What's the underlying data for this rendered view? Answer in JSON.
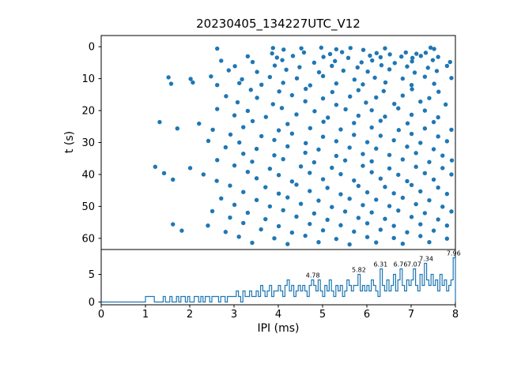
{
  "figure": {
    "title": "20230405_134227UTC_V12",
    "background": "#ffffff",
    "accent_color": "#1f77b4",
    "axis_color": "#000000"
  },
  "chart_data": [
    {
      "type": "scatter",
      "title": "20230405_134227UTC_V12",
      "xlabel": "",
      "ylabel": "t (s)",
      "xlim": [
        0,
        8
      ],
      "ylim": [
        -3.5,
        63.5
      ],
      "y_inverted": true,
      "xticks": [
        0,
        1,
        2,
        3,
        4,
        5,
        6,
        7,
        8
      ],
      "yticks": [
        0,
        10,
        20,
        30,
        40,
        50,
        60
      ],
      "marker_color": "#1f77b4",
      "points": [
        [
          2.62,
          0.6
        ],
        [
          3.88,
          0.4
        ],
        [
          4.12,
          0.9
        ],
        [
          4.52,
          0.5
        ],
        [
          4.97,
          0.3
        ],
        [
          5.31,
          0.8
        ],
        [
          5.63,
          0.4
        ],
        [
          5.92,
          1.0
        ],
        [
          6.41,
          0.5
        ],
        [
          7.44,
          0.3
        ],
        [
          7.52,
          0.7
        ],
        [
          3.86,
          2.1
        ],
        [
          4.58,
          1.8
        ],
        [
          5.17,
          2.3
        ],
        [
          5.44,
          1.7
        ],
        [
          6.22,
          2.0
        ],
        [
          6.52,
          2.4
        ],
        [
          6.88,
          1.8
        ],
        [
          7.12,
          2.2
        ],
        [
          7.33,
          1.9
        ],
        [
          3.31,
          3.0
        ],
        [
          3.97,
          3.4
        ],
        [
          4.33,
          2.9
        ],
        [
          5.02,
          3.2
        ],
        [
          5.58,
          3.5
        ],
        [
          6.07,
          2.8
        ],
        [
          6.31,
          3.3
        ],
        [
          6.78,
          3.1
        ],
        [
          7.03,
          3.5
        ],
        [
          7.22,
          2.9
        ],
        [
          7.61,
          3.2
        ],
        [
          2.71,
          4.4
        ],
        [
          3.42,
          4.8
        ],
        [
          4.09,
          4.2
        ],
        [
          4.81,
          5.0
        ],
        [
          5.28,
          4.5
        ],
        [
          5.88,
          4.9
        ],
        [
          6.12,
          4.3
        ],
        [
          6.63,
          5.1
        ],
        [
          7.02,
          4.6
        ],
        [
          7.49,
          4.2
        ],
        [
          7.88,
          4.8
        ],
        [
          3.02,
          6.1
        ],
        [
          3.92,
          5.9
        ],
        [
          4.48,
          6.4
        ],
        [
          5.21,
          6.0
        ],
        [
          5.79,
          6.5
        ],
        [
          6.33,
          5.8
        ],
        [
          6.91,
          6.2
        ],
        [
          7.38,
          6.6
        ],
        [
          7.81,
          6.0
        ],
        [
          2.88,
          7.4
        ],
        [
          3.52,
          7.9
        ],
        [
          4.18,
          7.2
        ],
        [
          4.92,
          8.0
        ],
        [
          5.47,
          7.5
        ],
        [
          6.02,
          7.8
        ],
        [
          6.51,
          7.1
        ],
        [
          7.08,
          8.1
        ],
        [
          7.58,
          7.6
        ],
        [
          1.52,
          9.6
        ],
        [
          2.02,
          10.1
        ],
        [
          2.48,
          9.3
        ],
        [
          3.18,
          10.2
        ],
        [
          3.81,
          9.5
        ],
        [
          4.42,
          9.9
        ],
        [
          5.01,
          9.2
        ],
        [
          5.72,
          10.3
        ],
        [
          6.18,
          9.7
        ],
        [
          6.81,
          10.0
        ],
        [
          7.31,
          9.4
        ],
        [
          7.91,
          9.8
        ],
        [
          1.58,
          11.6
        ],
        [
          2.07,
          11.2
        ],
        [
          2.62,
          12.0
        ],
        [
          3.12,
          11.4
        ],
        [
          3.62,
          11.9
        ],
        [
          4.11,
          11.3
        ],
        [
          4.72,
          12.1
        ],
        [
          5.31,
          11.5
        ],
        [
          5.91,
          11.8
        ],
        [
          6.42,
          11.2
        ],
        [
          7.01,
          12.0
        ],
        [
          7.52,
          11.6
        ],
        [
          3.38,
          13.5
        ],
        [
          4.02,
          14.0
        ],
        [
          4.62,
          13.2
        ],
        [
          5.22,
          14.2
        ],
        [
          5.81,
          13.6
        ],
        [
          6.38,
          13.9
        ],
        [
          7.02,
          13.3
        ],
        [
          7.62,
          14.1
        ],
        [
          2.82,
          15.5
        ],
        [
          3.52,
          16.0
        ],
        [
          4.31,
          15.2
        ],
        [
          5.01,
          16.2
        ],
        [
          5.62,
          15.6
        ],
        [
          6.21,
          15.9
        ],
        [
          6.81,
          15.3
        ],
        [
          7.41,
          16.1
        ],
        [
          3.08,
          17.4
        ],
        [
          3.88,
          18.0
        ],
        [
          4.61,
          17.1
        ],
        [
          5.31,
          18.2
        ],
        [
          5.98,
          17.5
        ],
        [
          6.62,
          17.9
        ],
        [
          7.21,
          17.2
        ],
        [
          7.78,
          18.1
        ],
        [
          2.62,
          19.5
        ],
        [
          3.31,
          20.1
        ],
        [
          4.08,
          19.2
        ],
        [
          4.82,
          20.2
        ],
        [
          5.52,
          19.6
        ],
        [
          6.11,
          19.9
        ],
        [
          6.71,
          19.3
        ],
        [
          7.31,
          20.0
        ],
        [
          3.01,
          21.5
        ],
        [
          3.72,
          22.0
        ],
        [
          4.41,
          21.2
        ],
        [
          5.12,
          22.2
        ],
        [
          5.81,
          21.6
        ],
        [
          6.41,
          21.9
        ],
        [
          7.01,
          21.3
        ],
        [
          7.61,
          22.1
        ],
        [
          1.32,
          23.6
        ],
        [
          2.21,
          24.1
        ],
        [
          3.42,
          23.3
        ],
        [
          4.21,
          24.2
        ],
        [
          5.02,
          23.5
        ],
        [
          5.71,
          23.9
        ],
        [
          6.31,
          23.2
        ],
        [
          6.92,
          24.0
        ],
        [
          7.51,
          23.6
        ],
        [
          1.72,
          25.6
        ],
        [
          2.52,
          26.0
        ],
        [
          3.21,
          25.2
        ],
        [
          4.01,
          26.2
        ],
        [
          4.72,
          25.5
        ],
        [
          5.41,
          25.9
        ],
        [
          6.11,
          25.3
        ],
        [
          6.72,
          26.1
        ],
        [
          7.31,
          25.6
        ],
        [
          7.91,
          26.0
        ],
        [
          2.92,
          27.5
        ],
        [
          3.62,
          28.0
        ],
        [
          4.31,
          27.2
        ],
        [
          5.01,
          28.2
        ],
        [
          5.71,
          27.6
        ],
        [
          6.31,
          27.9
        ],
        [
          7.01,
          27.3
        ],
        [
          7.61,
          28.1
        ],
        [
          2.42,
          29.5
        ],
        [
          3.12,
          30.0
        ],
        [
          3.91,
          29.2
        ],
        [
          4.62,
          30.2
        ],
        [
          5.31,
          29.6
        ],
        [
          6.01,
          29.9
        ],
        [
          6.61,
          29.3
        ],
        [
          7.21,
          30.1
        ],
        [
          7.81,
          29.6
        ],
        [
          2.81,
          31.5
        ],
        [
          3.51,
          32.0
        ],
        [
          4.21,
          31.2
        ],
        [
          4.91,
          32.2
        ],
        [
          5.61,
          31.6
        ],
        [
          6.21,
          31.9
        ],
        [
          6.91,
          31.3
        ],
        [
          7.51,
          32.1
        ],
        [
          3.21,
          33.5
        ],
        [
          3.91,
          34.0
        ],
        [
          4.61,
          33.2
        ],
        [
          5.31,
          34.2
        ],
        [
          5.91,
          33.6
        ],
        [
          6.51,
          33.9
        ],
        [
          7.11,
          33.3
        ],
        [
          7.71,
          34.1
        ],
        [
          2.62,
          35.5
        ],
        [
          3.41,
          36.0
        ],
        [
          4.11,
          35.2
        ],
        [
          4.81,
          36.2
        ],
        [
          5.51,
          35.6
        ],
        [
          6.11,
          35.9
        ],
        [
          6.81,
          35.3
        ],
        [
          7.41,
          36.1
        ],
        [
          7.92,
          35.6
        ],
        [
          1.22,
          37.6
        ],
        [
          2.01,
          38.0
        ],
        [
          3.01,
          37.2
        ],
        [
          3.81,
          38.2
        ],
        [
          4.51,
          37.5
        ],
        [
          5.21,
          37.9
        ],
        [
          5.91,
          37.3
        ],
        [
          6.51,
          38.1
        ],
        [
          7.11,
          37.6
        ],
        [
          7.71,
          38.0
        ],
        [
          1.42,
          39.6
        ],
        [
          2.31,
          40.0
        ],
        [
          3.31,
          39.2
        ],
        [
          4.01,
          40.2
        ],
        [
          4.71,
          39.5
        ],
        [
          5.41,
          39.9
        ],
        [
          6.11,
          39.3
        ],
        [
          6.71,
          40.1
        ],
        [
          7.31,
          39.6
        ],
        [
          7.91,
          40.0
        ],
        [
          1.62,
          41.6
        ],
        [
          2.61,
          42.0
        ],
        [
          3.51,
          41.2
        ],
        [
          4.31,
          42.2
        ],
        [
          5.01,
          41.5
        ],
        [
          5.71,
          41.9
        ],
        [
          6.31,
          41.3
        ],
        [
          6.91,
          42.1
        ],
        [
          7.51,
          41.6
        ],
        [
          2.91,
          43.5
        ],
        [
          3.71,
          44.0
        ],
        [
          4.41,
          43.2
        ],
        [
          5.11,
          44.2
        ],
        [
          5.81,
          43.6
        ],
        [
          6.41,
          43.9
        ],
        [
          7.01,
          43.3
        ],
        [
          7.61,
          44.1
        ],
        [
          3.21,
          45.5
        ],
        [
          4.01,
          46.0
        ],
        [
          4.71,
          45.2
        ],
        [
          5.41,
          46.2
        ],
        [
          6.01,
          45.6
        ],
        [
          6.61,
          45.9
        ],
        [
          7.21,
          45.3
        ],
        [
          7.81,
          46.1
        ],
        [
          2.71,
          47.5
        ],
        [
          3.51,
          48.0
        ],
        [
          4.21,
          47.2
        ],
        [
          4.91,
          48.2
        ],
        [
          5.61,
          47.6
        ],
        [
          6.21,
          47.9
        ],
        [
          6.81,
          47.3
        ],
        [
          7.41,
          48.1
        ],
        [
          3.01,
          49.5
        ],
        [
          3.81,
          50.0
        ],
        [
          4.51,
          49.2
        ],
        [
          5.21,
          50.2
        ],
        [
          5.91,
          49.6
        ],
        [
          6.51,
          49.9
        ],
        [
          7.11,
          49.3
        ],
        [
          7.71,
          50.1
        ],
        [
          2.51,
          51.5
        ],
        [
          3.31,
          52.0
        ],
        [
          4.11,
          51.2
        ],
        [
          4.81,
          52.2
        ],
        [
          5.51,
          51.6
        ],
        [
          6.11,
          51.9
        ],
        [
          6.71,
          51.3
        ],
        [
          7.31,
          52.1
        ],
        [
          7.91,
          51.6
        ],
        [
          2.91,
          53.5
        ],
        [
          3.71,
          54.0
        ],
        [
          4.41,
          53.2
        ],
        [
          5.11,
          54.2
        ],
        [
          5.81,
          53.6
        ],
        [
          6.41,
          53.9
        ],
        [
          7.01,
          53.3
        ],
        [
          7.61,
          54.1
        ],
        [
          1.62,
          55.6
        ],
        [
          2.41,
          56.0
        ],
        [
          3.21,
          55.2
        ],
        [
          4.01,
          56.2
        ],
        [
          4.71,
          55.5
        ],
        [
          5.41,
          55.9
        ],
        [
          6.01,
          55.3
        ],
        [
          6.61,
          56.1
        ],
        [
          7.21,
          55.6
        ],
        [
          7.81,
          56.0
        ],
        [
          1.82,
          57.6
        ],
        [
          2.81,
          58.0
        ],
        [
          3.61,
          57.2
        ],
        [
          4.31,
          58.2
        ],
        [
          5.01,
          57.5
        ],
        [
          5.71,
          57.9
        ],
        [
          6.31,
          57.3
        ],
        [
          6.91,
          58.1
        ],
        [
          7.51,
          57.6
        ],
        [
          3.11,
          59.5
        ],
        [
          3.91,
          60.0
        ],
        [
          4.61,
          59.2
        ],
        [
          5.31,
          60.2
        ],
        [
          6.01,
          59.6
        ],
        [
          6.61,
          59.9
        ],
        [
          7.21,
          59.3
        ],
        [
          7.81,
          60.1
        ],
        [
          3.41,
          61.4
        ],
        [
          4.21,
          61.8
        ],
        [
          4.91,
          61.2
        ],
        [
          5.61,
          61.9
        ],
        [
          6.21,
          61.3
        ],
        [
          6.81,
          61.7
        ],
        [
          7.41,
          61.2
        ]
      ]
    },
    {
      "type": "bar",
      "title": "",
      "xlabel": "IPI (ms)",
      "ylabel": "",
      "xlim": [
        0,
        8
      ],
      "ylim": [
        -0.5,
        9.5
      ],
      "xticks": [
        0,
        1,
        2,
        3,
        4,
        5,
        6,
        7,
        8
      ],
      "yticks": [
        0,
        5
      ],
      "bin_start": 0,
      "bin_width": 0.05,
      "line_color": "#1f77b4",
      "counts": [
        0,
        0,
        0,
        0,
        0,
        0,
        0,
        0,
        0,
        0,
        0,
        0,
        0,
        0,
        0,
        0,
        0,
        0,
        0,
        0,
        1,
        1,
        1,
        1,
        0,
        0,
        0,
        0,
        1,
        0,
        0,
        1,
        0,
        0,
        1,
        0,
        1,
        1,
        0,
        1,
        0,
        0,
        1,
        1,
        0,
        1,
        0,
        1,
        1,
        0,
        1,
        1,
        1,
        0,
        1,
        1,
        0,
        1,
        1,
        1,
        1,
        2,
        1,
        0,
        2,
        1,
        1,
        2,
        1,
        1,
        2,
        1,
        3,
        2,
        1,
        2,
        3,
        1,
        2,
        2,
        3,
        2,
        1,
        3,
        4,
        2,
        3,
        1,
        2,
        3,
        2,
        3,
        2,
        1,
        3,
        4,
        3,
        2,
        4,
        2,
        1,
        3,
        2,
        4,
        2,
        1,
        3,
        2,
        3,
        1,
        2,
        4,
        3,
        2,
        3,
        3,
        5,
        2,
        3,
        2,
        3,
        2,
        4,
        3,
        2,
        1,
        6,
        3,
        2,
        4,
        2,
        3,
        5,
        2,
        4,
        6,
        3,
        2,
        4,
        3,
        4,
        6,
        3,
        2,
        5,
        3,
        7,
        4,
        3,
        5,
        3,
        4,
        2,
        5,
        3,
        4,
        2,
        3,
        4,
        8
      ],
      "peak_labels": [
        {
          "x": 4.78,
          "label": "4.78"
        },
        {
          "x": 5.82,
          "label": "5.82"
        },
        {
          "x": 6.31,
          "label": "6.31"
        },
        {
          "x": 6.76,
          "label": "6.76"
        },
        {
          "x": 7.07,
          "label": "7.07"
        },
        {
          "x": 7.34,
          "label": "7.34"
        },
        {
          "x": 7.96,
          "label": "7.96"
        }
      ]
    }
  ]
}
